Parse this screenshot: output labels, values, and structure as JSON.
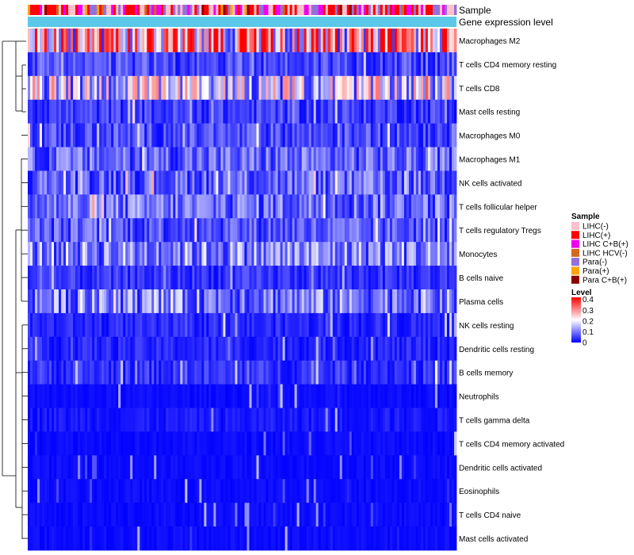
{
  "chart_data": {
    "type": "heatmap",
    "title": "",
    "annotation_tracks": [
      "Sample",
      "Gene expression level"
    ],
    "rows": [
      "Macrophages M2",
      "T cells CD4 memory resting",
      "T cells CD8",
      "Mast cells resting",
      "Macrophages M0",
      "Macrophages M1",
      "NK cells activated",
      "T cells follicular helper",
      "T cells regulatory  Tregs",
      "Monocytes",
      "B cells naive",
      "Plasma cells",
      "NK cells resting",
      "Dendritic cells resting",
      "B cells memory",
      "Neutrophils",
      "T cells gamma delta",
      "T cells CD4 memory activated",
      "Dendritic cells activated",
      "Eosinophils",
      "T cells CD4 naive",
      "Mast cells activated"
    ],
    "row_mean_levels": [
      0.28,
      0.06,
      0.17,
      0.05,
      0.06,
      0.08,
      0.08,
      0.09,
      0.07,
      0.11,
      0.04,
      0.1,
      0.03,
      0.03,
      0.04,
      0.01,
      0.02,
      0.01,
      0.01,
      0.01,
      0.01,
      0.01
    ],
    "sample_legend": {
      "title": "Sample",
      "entries": [
        {
          "label": "LIHC(-)",
          "color": "#ffc0cb"
        },
        {
          "label": "LIHC(+)",
          "color": "#ff0000"
        },
        {
          "label": "LIHC C+B(+)",
          "color": "#ee00ee"
        },
        {
          "label": "LIHC HCV(-)",
          "color": "#d2691e"
        },
        {
          "label": "Para(-)",
          "color": "#9370db"
        },
        {
          "label": "Para(+)",
          "color": "#ffa500"
        },
        {
          "label": "Para C+B(+)",
          "color": "#8b0000"
        }
      ]
    },
    "level_legend": {
      "title": "Level",
      "ticks": [
        "0.4",
        "0.3",
        "0.2",
        "0.1",
        "0"
      ],
      "tick_values": [
        0.4,
        0.3,
        0.2,
        0.1,
        0
      ],
      "range": [
        0,
        0.42
      ],
      "colors": [
        "#0000ff",
        "#ffffff",
        "#ff0000"
      ]
    },
    "expression_track_color": "#5bc8e8"
  }
}
